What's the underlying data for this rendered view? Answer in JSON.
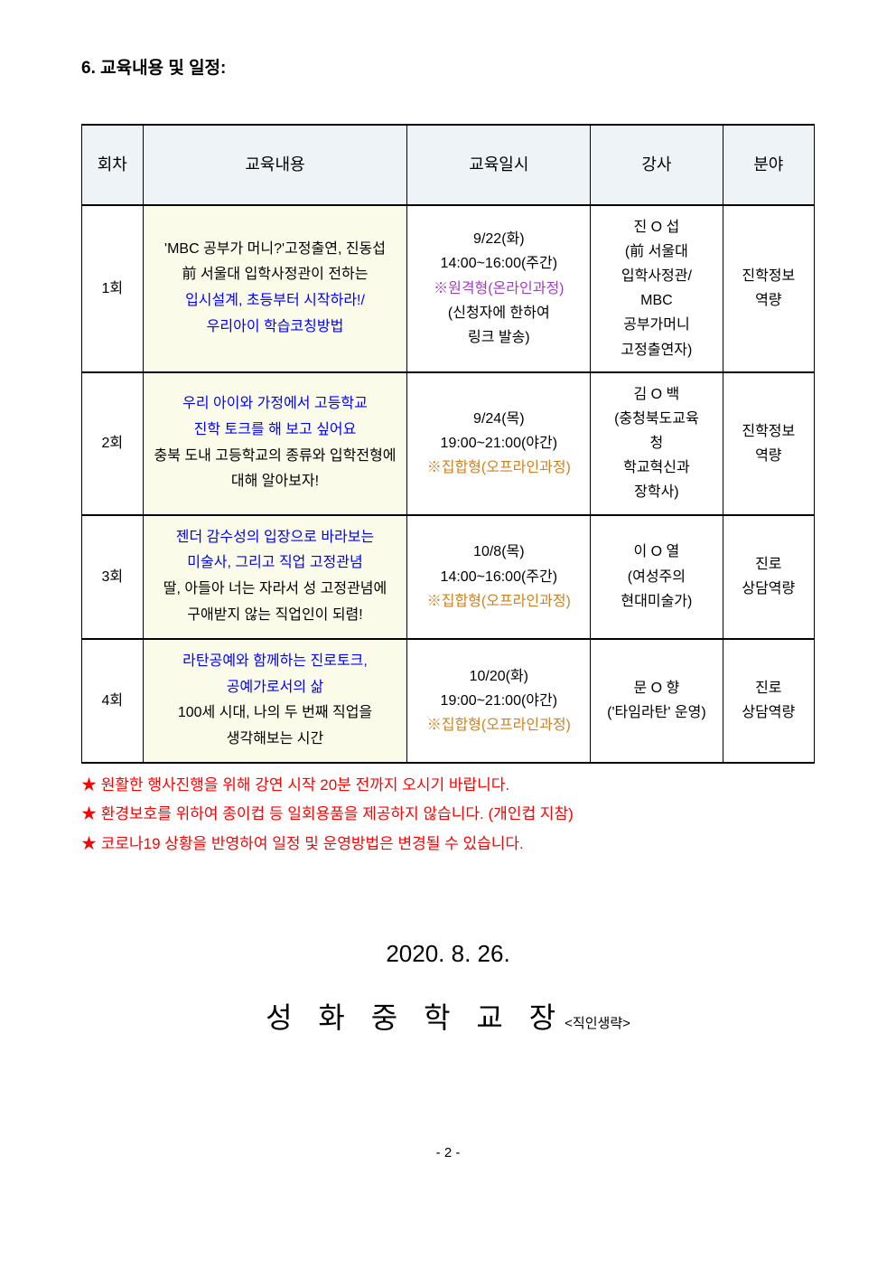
{
  "heading": "6. 교육내용 및 일정:",
  "table": {
    "headers": [
      "회차",
      "교육내용",
      "교육일시",
      "강사",
      "분야"
    ],
    "rows": [
      {
        "no": "1회",
        "content_lines": [
          {
            "text": "'MBC 공부가 머니?'고정출연, 진동섭",
            "cls": ""
          },
          {
            "text": "前 서울대 입학사정관이 전하는",
            "cls": ""
          },
          {
            "text": "입시설계, 초등부터 시작하라!/",
            "cls": "blue"
          },
          {
            "text": "우리아이 학습코칭방법",
            "cls": "blue"
          }
        ],
        "date_lines": [
          {
            "text": "9/22(화)",
            "cls": ""
          },
          {
            "text": "14:00~16:00(주간)",
            "cls": ""
          },
          {
            "text": "※원격형(온라인과정)",
            "cls": "purple"
          },
          {
            "text": "(신청자에 한하여",
            "cls": ""
          },
          {
            "text": "링크 발송)",
            "cls": ""
          }
        ],
        "lecturer_lines": [
          "진 O 섭",
          "(前 서울대",
          "입학사정관/",
          "MBC",
          "공부가머니",
          "고정출연자)"
        ],
        "field_lines": [
          "진학정보",
          "역량"
        ]
      },
      {
        "no": "2회",
        "content_lines": [
          {
            "text": "우리 아이와 가정에서 고등학교",
            "cls": "blue"
          },
          {
            "text": "진학 토크를 해 보고 싶어요",
            "cls": "blue"
          },
          {
            "text": "충북 도내 고등학교의 종류와 입학전형에",
            "cls": ""
          },
          {
            "text": "대해 알아보자!",
            "cls": ""
          }
        ],
        "date_lines": [
          {
            "text": "9/24(목)",
            "cls": ""
          },
          {
            "text": "19:00~21:00(야간)",
            "cls": ""
          },
          {
            "text": "※집합형(오프라인과정)",
            "cls": "orange"
          }
        ],
        "lecturer_lines": [
          "김 O 백",
          "(충청북도교육",
          "청",
          "학교혁신과",
          "장학사)"
        ],
        "field_lines": [
          "진학정보",
          "역량"
        ]
      },
      {
        "no": "3회",
        "content_lines": [
          {
            "text": "젠더 감수성의 입장으로 바라보는",
            "cls": "blue"
          },
          {
            "text": "미술사, 그리고 직업 고정관념",
            "cls": "blue"
          },
          {
            "text": "딸, 아들아 너는 자라서 성 고정관념에",
            "cls": ""
          },
          {
            "text": "구애받지 않는 직업인이 되렴!",
            "cls": ""
          }
        ],
        "date_lines": [
          {
            "text": "10/8(목)",
            "cls": ""
          },
          {
            "text": "14:00~16:00(주간)",
            "cls": ""
          },
          {
            "text": "※집합형(오프라인과정)",
            "cls": "orange"
          }
        ],
        "lecturer_lines": [
          "이 O 열",
          "(여성주의",
          "현대미술가)"
        ],
        "field_lines": [
          "진로",
          "상담역량"
        ]
      },
      {
        "no": "4회",
        "content_lines": [
          {
            "text": "라탄공예와 함께하는 진로토크,",
            "cls": "blue"
          },
          {
            "text": "공예가로서의 삶",
            "cls": "blue"
          },
          {
            "text": "100세 시대, 나의 두 번째 직업을",
            "cls": ""
          },
          {
            "text": "생각해보는 시간",
            "cls": ""
          }
        ],
        "date_lines": [
          {
            "text": "10/20(화)",
            "cls": ""
          },
          {
            "text": "19:00~21:00(야간)",
            "cls": ""
          },
          {
            "text": "※집합형(오프라인과정)",
            "cls": "orange"
          }
        ],
        "lecturer_lines": [
          "문 O 향",
          "('타임라탄' 운영)"
        ],
        "field_lines": [
          "진로",
          "상담역량"
        ]
      }
    ]
  },
  "notes": [
    "★ 원활한 행사진행을 위해 강연 시작 20분 전까지 오시기 바랍니다.",
    "★ 환경보호를 위하여 종이컵 등 일회용품을 제공하지 않습니다. (개인컵 지참)",
    "★ 코로나19 상황을 반영하여 일정 및 운영방법은 변경될 수 있습니다."
  ],
  "date": "2020. 8. 26.",
  "principal_main": "성 화 중 학 교 장",
  "principal_sub": "<직인생략>",
  "page_num": "- 2 -"
}
